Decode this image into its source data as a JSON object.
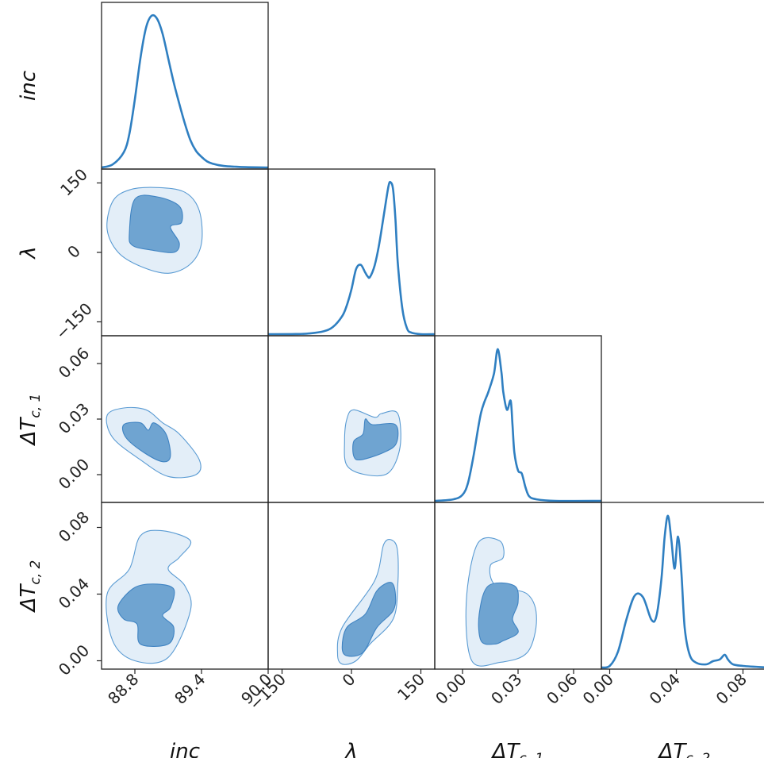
{
  "colors": {
    "line": "#2f7fc1",
    "outer_fill": "#e3eef8",
    "inner_fill": "#6fa4d1"
  },
  "chart_data": {
    "type": "corner",
    "title": "",
    "grid": false,
    "parameters": [
      {
        "id": "inc",
        "label": "inc",
        "range": [
          88.5,
          90.0
        ],
        "ticks": [
          "88.8",
          "89.4",
          "90.0"
        ],
        "tick_values": [
          88.8,
          89.4,
          90.0
        ]
      },
      {
        "id": "lambda",
        "label": "λ",
        "range": [
          -180,
          180
        ],
        "ticks": [
          "−150",
          "0",
          "150"
        ],
        "tick_values": [
          -150,
          0,
          150
        ]
      },
      {
        "id": "dtc1",
        "label": "ΔT",
        "label_sub": "c, 1",
        "range": [
          -0.015,
          0.075
        ],
        "ticks": [
          "0.00",
          "0.03",
          "0.06"
        ],
        "tick_values": [
          0.0,
          0.03,
          0.06
        ]
      },
      {
        "id": "dtc2",
        "label": "ΔT",
        "label_sub": "c, 2",
        "range": [
          -0.005,
          0.095
        ],
        "ticks": [
          "0.00",
          "0.04",
          "0.08"
        ],
        "tick_values": [
          0.0,
          0.04,
          0.08
        ]
      }
    ],
    "marginals": [
      {
        "param": "inc",
        "x": [
          88.5,
          88.6,
          88.7,
          88.75,
          88.8,
          88.85,
          88.9,
          88.95,
          89.0,
          89.05,
          89.1,
          89.15,
          89.2,
          89.25,
          89.3,
          89.35,
          89.4,
          89.45,
          89.5,
          89.6,
          89.7,
          89.8,
          90.0
        ],
        "density": [
          0.0,
          0.02,
          0.1,
          0.22,
          0.45,
          0.72,
          0.92,
          1.0,
          0.98,
          0.88,
          0.72,
          0.56,
          0.42,
          0.29,
          0.18,
          0.11,
          0.07,
          0.04,
          0.025,
          0.01,
          0.005,
          0.002,
          0.0
        ]
      },
      {
        "param": "lambda",
        "x": [
          -180,
          -120,
          -90,
          -60,
          -40,
          -20,
          -10,
          0,
          10,
          20,
          30,
          35,
          40,
          50,
          60,
          70,
          80,
          85,
          90,
          95,
          100,
          110,
          120,
          130,
          150,
          180
        ],
        "density": [
          0.0,
          0.002,
          0.01,
          0.04,
          0.1,
          0.25,
          0.4,
          0.62,
          0.9,
          0.96,
          0.85,
          0.8,
          0.79,
          0.95,
          1.25,
          1.65,
          2.05,
          2.1,
          2.0,
          1.6,
          1.0,
          0.35,
          0.08,
          0.02,
          0.0,
          0.0
        ]
      },
      {
        "param": "dtc1",
        "x": [
          -0.015,
          -0.005,
          0.0,
          0.003,
          0.006,
          0.01,
          0.014,
          0.017,
          0.019,
          0.021,
          0.022,
          0.024,
          0.026,
          0.027,
          0.028,
          0.03,
          0.032,
          0.034,
          0.036,
          0.04,
          0.05,
          0.075
        ],
        "density": [
          0.0,
          0.01,
          0.04,
          0.12,
          0.3,
          0.58,
          0.72,
          0.84,
          1.0,
          0.85,
          0.72,
          0.6,
          0.66,
          0.5,
          0.32,
          0.2,
          0.18,
          0.09,
          0.03,
          0.01,
          0.0,
          0.0
        ]
      },
      {
        "param": "dtc2",
        "x": [
          -0.005,
          0.0,
          0.005,
          0.01,
          0.015,
          0.02,
          0.025,
          0.028,
          0.031,
          0.033,
          0.035,
          0.037,
          0.039,
          0.041,
          0.043,
          0.045,
          0.048,
          0.052,
          0.058,
          0.062,
          0.066,
          0.069,
          0.071,
          0.074,
          0.08,
          0.095
        ],
        "density": [
          0.0,
          0.01,
          0.1,
          0.3,
          0.45,
          0.44,
          0.3,
          0.32,
          0.55,
          0.82,
          0.95,
          0.8,
          0.62,
          0.82,
          0.6,
          0.25,
          0.08,
          0.03,
          0.02,
          0.04,
          0.05,
          0.08,
          0.05,
          0.02,
          0.01,
          0.0
        ]
      }
    ],
    "contours": [
      {
        "x": "inc",
        "y": "lambda",
        "outer": [
          [
            88.55,
            50
          ],
          [
            88.6,
            110
          ],
          [
            88.75,
            135
          ],
          [
            89.0,
            140
          ],
          [
            89.25,
            130
          ],
          [
            89.38,
            90
          ],
          [
            89.4,
            20
          ],
          [
            89.3,
            -25
          ],
          [
            89.1,
            -45
          ],
          [
            88.85,
            -30
          ],
          [
            88.65,
            0
          ]
        ],
        "inner": [
          [
            88.75,
            40
          ],
          [
            88.8,
            115
          ],
          [
            89.0,
            120
          ],
          [
            89.2,
            100
          ],
          [
            89.22,
            65
          ],
          [
            89.12,
            55
          ],
          [
            89.2,
            20
          ],
          [
            89.15,
            0
          ],
          [
            88.95,
            5
          ],
          [
            88.78,
            15
          ]
        ]
      },
      {
        "x": "inc",
        "y": "dtc1",
        "outer": [
          [
            88.55,
            0.032
          ],
          [
            88.7,
            0.036
          ],
          [
            88.9,
            0.035
          ],
          [
            89.05,
            0.028
          ],
          [
            89.2,
            0.022
          ],
          [
            89.38,
            0.008
          ],
          [
            89.35,
            0.0
          ],
          [
            89.1,
            -0.001
          ],
          [
            88.85,
            0.008
          ],
          [
            88.6,
            0.02
          ]
        ],
        "inner": [
          [
            88.7,
            0.027
          ],
          [
            88.85,
            0.028
          ],
          [
            88.92,
            0.024
          ],
          [
            88.97,
            0.028
          ],
          [
            89.08,
            0.022
          ],
          [
            89.12,
            0.01
          ],
          [
            89.05,
            0.007
          ],
          [
            88.88,
            0.012
          ],
          [
            88.72,
            0.02
          ]
        ]
      },
      {
        "x": "inc",
        "y": "dtc2",
        "outer": [
          [
            88.55,
            0.04
          ],
          [
            88.75,
            0.055
          ],
          [
            88.85,
            0.075
          ],
          [
            89.05,
            0.078
          ],
          [
            89.3,
            0.072
          ],
          [
            89.2,
            0.062
          ],
          [
            89.1,
            0.055
          ],
          [
            89.25,
            0.045
          ],
          [
            89.3,
            0.03
          ],
          [
            89.1,
            0.002
          ],
          [
            88.8,
            0.0
          ],
          [
            88.6,
            0.012
          ]
        ],
        "inner": [
          [
            88.65,
            0.033
          ],
          [
            88.8,
            0.044
          ],
          [
            89.0,
            0.046
          ],
          [
            89.15,
            0.043
          ],
          [
            89.12,
            0.032
          ],
          [
            89.05,
            0.027
          ],
          [
            89.15,
            0.02
          ],
          [
            89.1,
            0.01
          ],
          [
            88.85,
            0.01
          ],
          [
            88.82,
            0.022
          ],
          [
            88.7,
            0.025
          ]
        ]
      },
      {
        "x": "lambda",
        "y": "dtc1",
        "outer": [
          [
            -10,
            0.03
          ],
          [
            5,
            0.035
          ],
          [
            50,
            0.031
          ],
          [
            65,
            0.033
          ],
          [
            100,
            0.033
          ],
          [
            105,
            0.015
          ],
          [
            80,
            0.001
          ],
          [
            30,
            0.0
          ],
          [
            -10,
            0.005
          ],
          [
            -15,
            0.018
          ]
        ],
        "inner": [
          [
            5,
            0.01
          ],
          [
            5,
            0.018
          ],
          [
            25,
            0.022
          ],
          [
            30,
            0.03
          ],
          [
            45,
            0.027
          ],
          [
            95,
            0.027
          ],
          [
            97,
            0.017
          ],
          [
            70,
            0.012
          ],
          [
            20,
            0.008
          ]
        ]
      },
      {
        "x": "lambda",
        "y": "dtc2",
        "outer": [
          [
            -30,
            0.004
          ],
          [
            -20,
            0.02
          ],
          [
            50,
            0.048
          ],
          [
            70,
            0.07
          ],
          [
            90,
            0.072
          ],
          [
            100,
            0.065
          ],
          [
            100,
            0.045
          ],
          [
            90,
            0.025
          ],
          [
            40,
            0.01
          ],
          [
            10,
            0.0
          ],
          [
            -20,
            -0.002
          ]
        ],
        "inner": [
          [
            -20,
            0.008
          ],
          [
            -10,
            0.02
          ],
          [
            30,
            0.028
          ],
          [
            55,
            0.042
          ],
          [
            85,
            0.047
          ],
          [
            95,
            0.04
          ],
          [
            90,
            0.03
          ],
          [
            55,
            0.02
          ],
          [
            25,
            0.005
          ],
          [
            -10,
            0.003
          ]
        ]
      },
      {
        "x": "dtc1",
        "y": "dtc2",
        "outer": [
          [
            0.002,
            0.035
          ],
          [
            0.008,
            0.07
          ],
          [
            0.02,
            0.072
          ],
          [
            0.022,
            0.062
          ],
          [
            0.015,
            0.057
          ],
          [
            0.018,
            0.045
          ],
          [
            0.035,
            0.04
          ],
          [
            0.04,
            0.025
          ],
          [
            0.035,
            0.005
          ],
          [
            0.02,
            -0.001
          ],
          [
            0.005,
            0.0
          ]
        ],
        "inner": [
          [
            0.009,
            0.028
          ],
          [
            0.014,
            0.045
          ],
          [
            0.028,
            0.045
          ],
          [
            0.03,
            0.035
          ],
          [
            0.027,
            0.025
          ],
          [
            0.03,
            0.017
          ],
          [
            0.022,
            0.012
          ],
          [
            0.017,
            0.01
          ],
          [
            0.01,
            0.012
          ]
        ]
      }
    ]
  }
}
